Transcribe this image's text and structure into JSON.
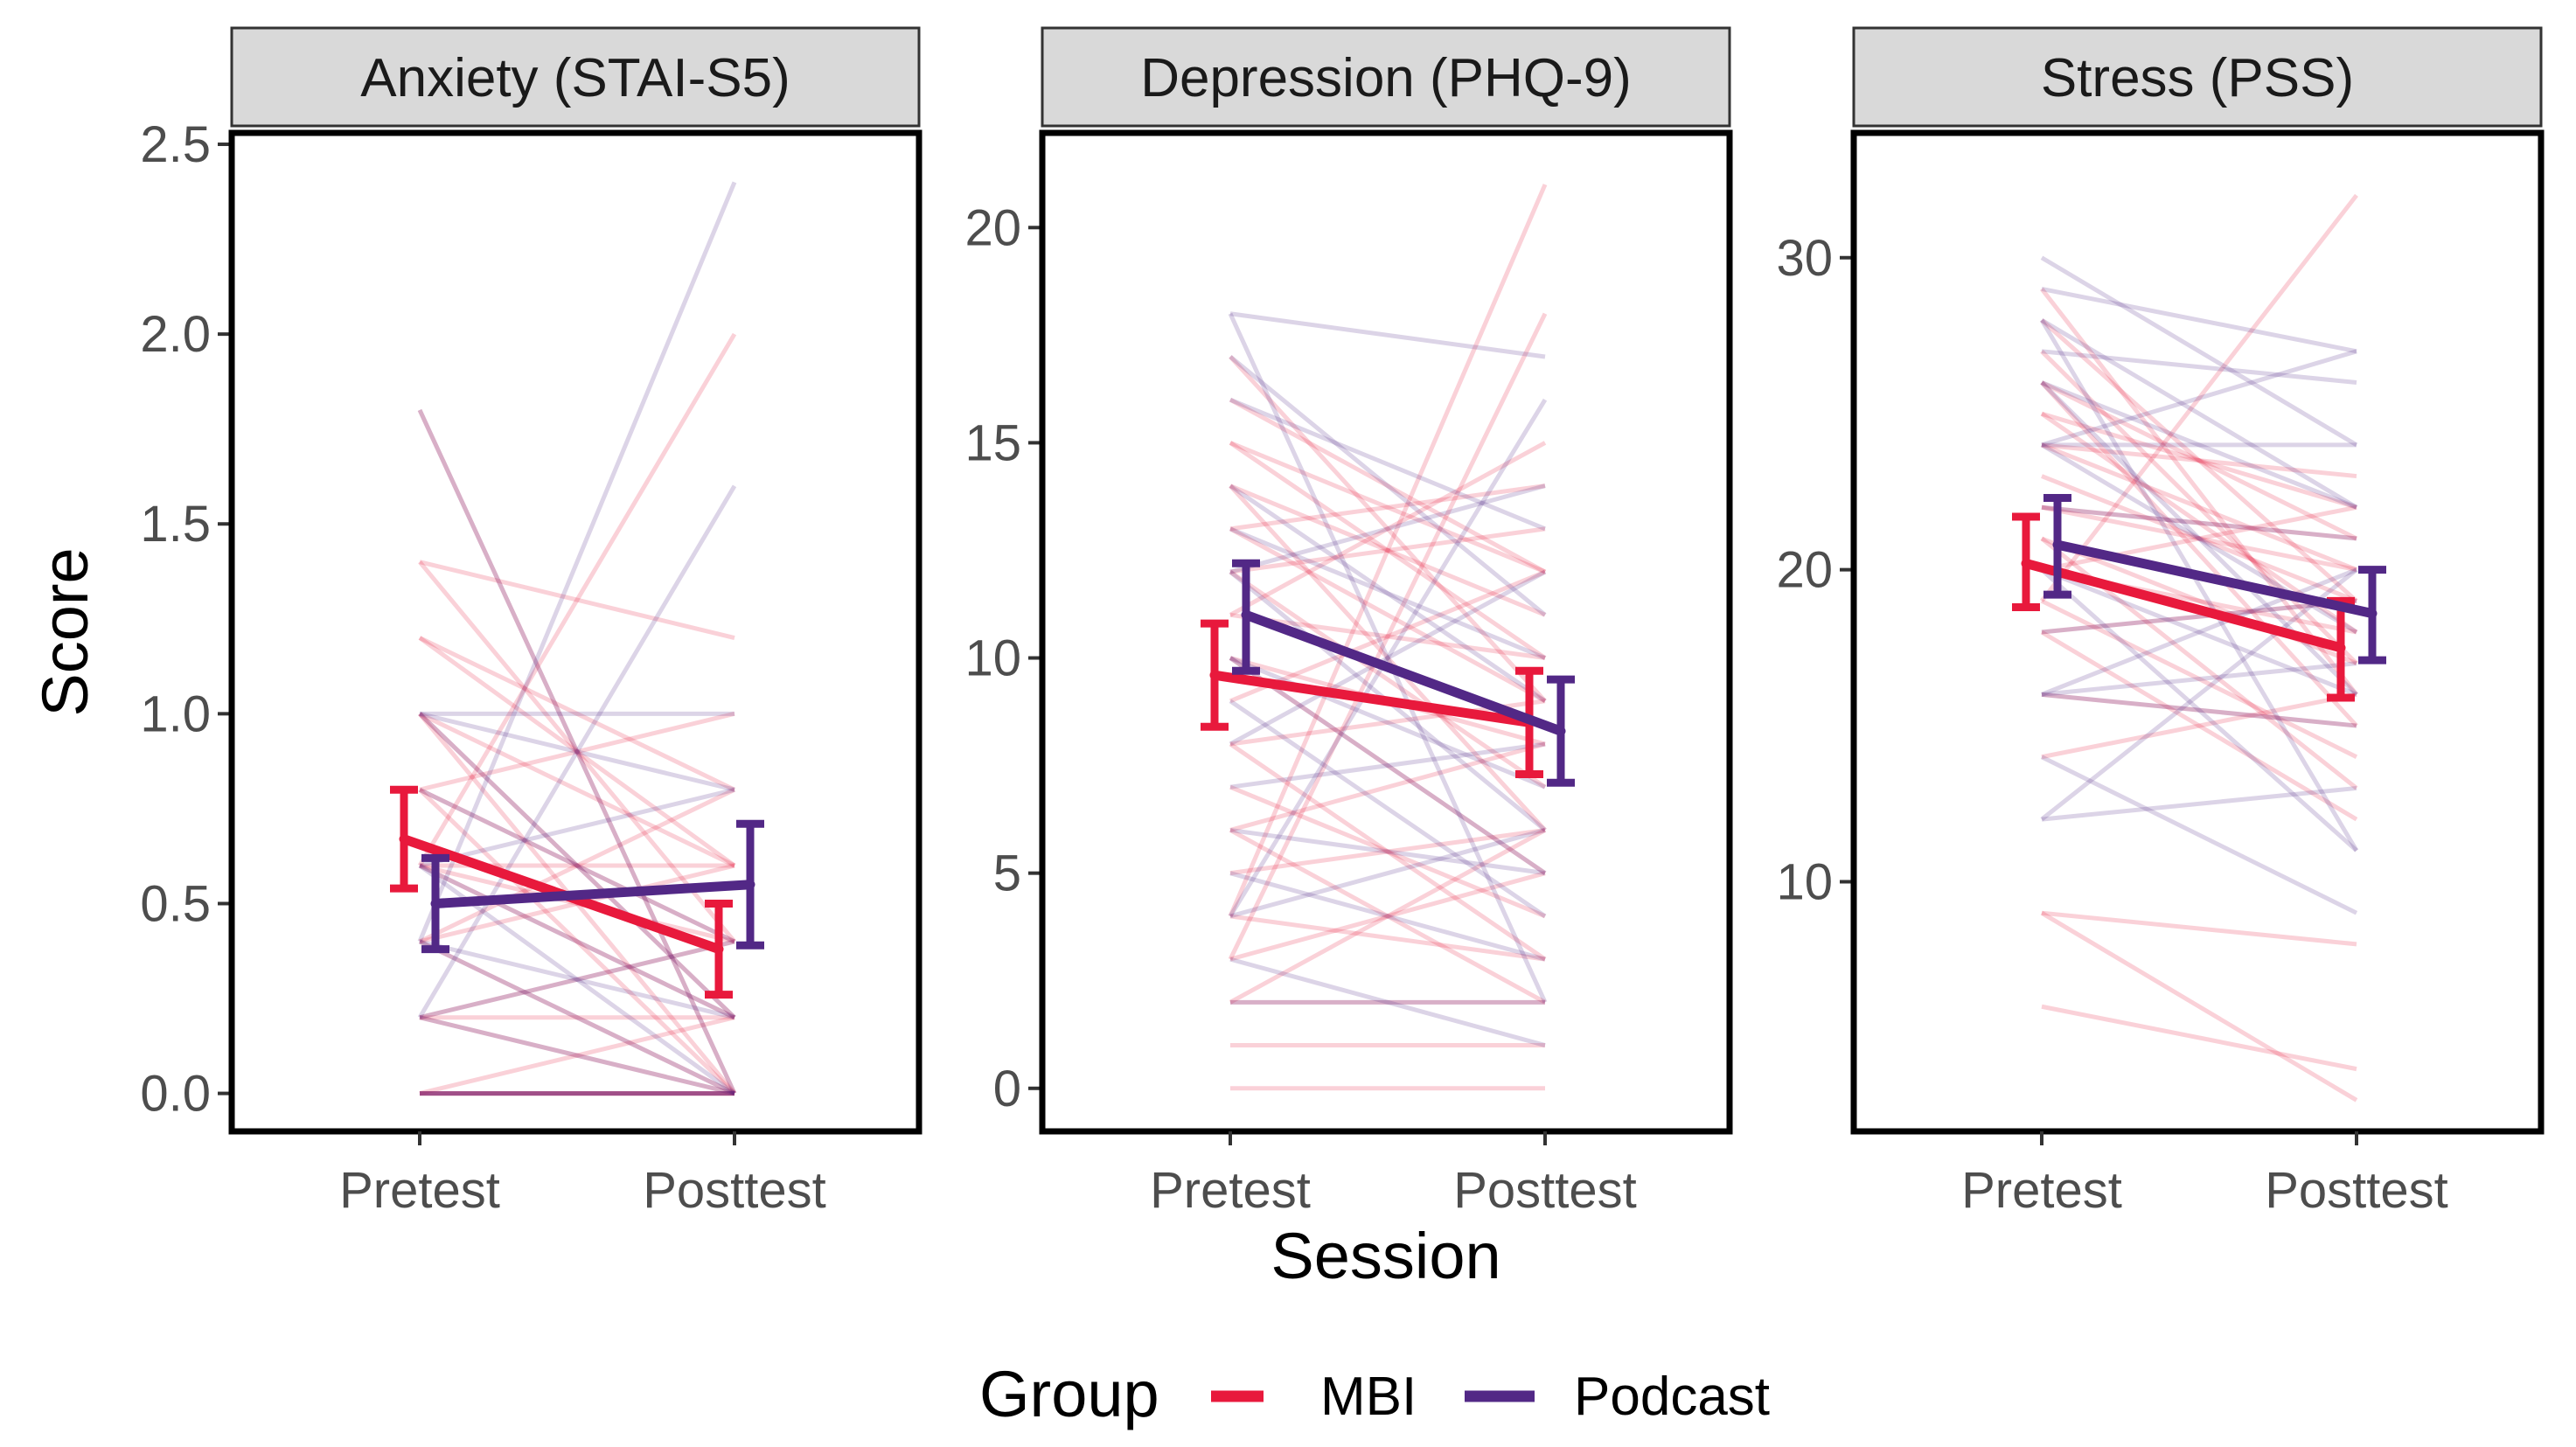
{
  "chart_data": {
    "type": "line",
    "layout": "faceted-3-panels",
    "xlabel": "Session",
    "ylabel": "Score",
    "x_categories": [
      "Pretest",
      "Posttest"
    ],
    "legend": {
      "title": "Group",
      "entries": [
        {
          "name": "MBI",
          "color": "#E8193C"
        },
        {
          "name": "Podcast",
          "color": "#522886"
        }
      ]
    },
    "panels": [
      {
        "title": "Anxiety (STAI-S5)",
        "ylim": [
          -0.1,
          2.53
        ],
        "yticks": [
          0.0,
          0.5,
          1.0,
          1.5,
          2.0,
          2.5
        ],
        "ytick_labels": [
          "0.0",
          "0.5",
          "1.0",
          "1.5",
          "2.0",
          "2.5"
        ],
        "means": {
          "MBI": {
            "pre": 0.67,
            "post": 0.38,
            "pre_ci": [
              0.54,
              0.8
            ],
            "post_ci": [
              0.26,
              0.5
            ]
          },
          "Podcast": {
            "pre": 0.5,
            "post": 0.55,
            "pre_ci": [
              0.38,
              0.62
            ],
            "post_ci": [
              0.39,
              0.71
            ]
          }
        },
        "individuals": {
          "MBI": [
            [
              0,
              0
            ],
            [
              0,
              0
            ],
            [
              0,
              0
            ],
            [
              0,
              0
            ],
            [
              0,
              0.2
            ],
            [
              0.2,
              0
            ],
            [
              0.2,
              0.4
            ],
            [
              0.2,
              0.2
            ],
            [
              0.4,
              0
            ],
            [
              0.4,
              0.6
            ],
            [
              0.6,
              0.2
            ],
            [
              0.6,
              0.4
            ],
            [
              0.8,
              0.4
            ],
            [
              0.8,
              1.0
            ],
            [
              1.0,
              0.6
            ],
            [
              1.0,
              0
            ],
            [
              1.2,
              0.8
            ],
            [
              1.4,
              0.4
            ],
            [
              1.4,
              1.2
            ],
            [
              1.8,
              0
            ],
            [
              0.6,
              2.0
            ],
            [
              0.4,
              0.8
            ],
            [
              1.0,
              0.2
            ],
            [
              0.8,
              0
            ],
            [
              1.2,
              0.6
            ],
            [
              0.6,
              0.6
            ]
          ],
          "Podcast": [
            [
              0,
              0
            ],
            [
              0,
              0
            ],
            [
              0,
              0
            ],
            [
              0.2,
              0
            ],
            [
              0.2,
              0.4
            ],
            [
              0.2,
              1.6
            ],
            [
              0.4,
              0
            ],
            [
              0.4,
              2.4
            ],
            [
              0.6,
              0.2
            ],
            [
              0.6,
              0.8
            ],
            [
              1.0,
              1.0
            ],
            [
              1.0,
              0.2
            ],
            [
              1.8,
              0
            ],
            [
              0.8,
              0.4
            ],
            [
              1.0,
              0.8
            ],
            [
              0.4,
              0.2
            ],
            [
              0.6,
              0
            ]
          ]
        }
      },
      {
        "title": "Depression (PHQ-9)",
        "ylim": [
          -1,
          22.2
        ],
        "yticks": [
          0,
          5,
          10,
          15,
          20
        ],
        "ytick_labels": [
          "0",
          "5",
          "10",
          "15",
          "20"
        ],
        "means": {
          "MBI": {
            "pre": 9.6,
            "post": 8.5,
            "pre_ci": [
              8.4,
              10.8
            ],
            "post_ci": [
              7.3,
              9.7
            ]
          },
          "Podcast": {
            "pre": 11.0,
            "post": 8.3,
            "pre_ci": [
              9.7,
              12.2
            ],
            "post_ci": [
              7.1,
              9.5
            ]
          }
        },
        "individuals": {
          "MBI": [
            [
              0,
              0
            ],
            [
              1,
              1
            ],
            [
              2,
              2
            ],
            [
              2,
              6
            ],
            [
              3,
              5
            ],
            [
              4,
              3
            ],
            [
              5,
              6
            ],
            [
              6,
              8
            ],
            [
              7,
              4
            ],
            [
              8,
              9
            ],
            [
              9,
              12
            ],
            [
              10,
              5
            ],
            [
              10,
              8
            ],
            [
              11,
              10
            ],
            [
              12,
              7
            ],
            [
              12,
              13
            ],
            [
              13,
              9
            ],
            [
              14,
              11
            ],
            [
              15,
              12
            ],
            [
              15,
              10
            ],
            [
              16,
              12
            ],
            [
              17,
              9
            ],
            [
              13,
              14
            ],
            [
              4,
              21
            ],
            [
              3,
              18
            ],
            [
              8,
              3
            ],
            [
              11,
              15
            ],
            [
              6,
              2
            ],
            [
              14,
              6
            ]
          ],
          "Podcast": [
            [
              2,
              2
            ],
            [
              3,
              1
            ],
            [
              4,
              6
            ],
            [
              5,
              3
            ],
            [
              6,
              5
            ],
            [
              8,
              12
            ],
            [
              9,
              4
            ],
            [
              10,
              7
            ],
            [
              12,
              14
            ],
            [
              13,
              10
            ],
            [
              14,
              9
            ],
            [
              16,
              13
            ],
            [
              17,
              11
            ],
            [
              18,
              17
            ],
            [
              18,
              2
            ],
            [
              4,
              16
            ],
            [
              7,
              8
            ],
            [
              10,
              5
            ],
            [
              12,
              6
            ]
          ]
        }
      },
      {
        "title": "Stress (PSS)",
        "ylim": [
          2,
          34
        ],
        "yticks": [
          10,
          20,
          30
        ],
        "ytick_labels": [
          "10",
          "20",
          "30"
        ],
        "means": {
          "MBI": {
            "pre": 20.2,
            "post": 17.5,
            "pre_ci": [
              18.8,
              21.7
            ],
            "post_ci": [
              15.9,
              19.0
            ]
          },
          "Podcast": {
            "pre": 20.8,
            "post": 18.6,
            "pre_ci": [
              19.2,
              22.3
            ],
            "post_ci": [
              17.1,
              20.0
            ]
          }
        },
        "individuals": {
          "MBI": [
            [
              6,
              4
            ],
            [
              9,
              8
            ],
            [
              14,
              16
            ],
            [
              16,
              15
            ],
            [
              18,
              12
            ],
            [
              18,
              19
            ],
            [
              19,
              14
            ],
            [
              20,
              18
            ],
            [
              20,
              22
            ],
            [
              21,
              17
            ],
            [
              22,
              20
            ],
            [
              22,
              21
            ],
            [
              23,
              19
            ],
            [
              24,
              20
            ],
            [
              24,
              23
            ],
            [
              25,
              22
            ],
            [
              26,
              21
            ],
            [
              26,
              15
            ],
            [
              28,
              19
            ],
            [
              29,
              16
            ],
            [
              27,
              17
            ],
            [
              9,
              3
            ],
            [
              19,
              32
            ],
            [
              21,
              13
            ],
            [
              25,
              18
            ]
          ],
          "Podcast": [
            [
              12,
              13
            ],
            [
              14,
              9
            ],
            [
              16,
              17
            ],
            [
              16,
              15
            ],
            [
              16,
              20
            ],
            [
              18,
              19
            ],
            [
              20,
              16
            ],
            [
              22,
              21
            ],
            [
              24,
              18
            ],
            [
              24,
              27
            ],
            [
              24,
              24
            ],
            [
              26,
              22
            ],
            [
              26,
              16
            ],
            [
              27,
              26
            ],
            [
              28,
              22
            ],
            [
              28,
              11
            ],
            [
              30,
              24
            ],
            [
              29,
              27
            ],
            [
              12,
              20
            ],
            [
              20,
              11
            ]
          ]
        }
      }
    ]
  }
}
